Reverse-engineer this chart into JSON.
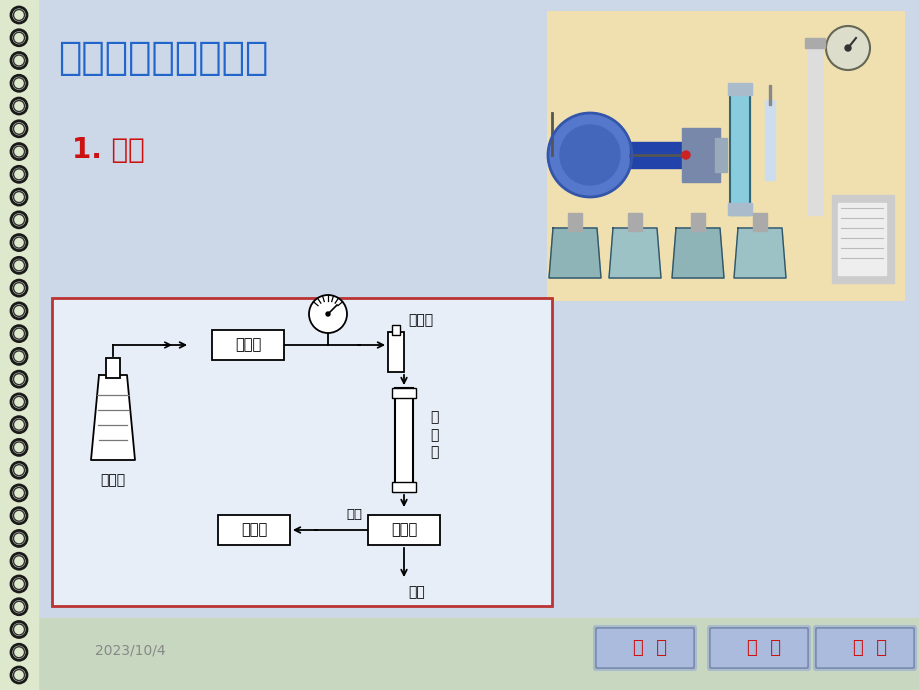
{
  "bg_color": "#c8d8c0",
  "main_bg": "#ccd8e8",
  "title": "二、流程及主要部件",
  "title_color": "#2266cc",
  "subtitle": "1. 流程",
  "subtitle_color": "#cc1111",
  "date_text": "2023/10/4",
  "date_color": "#888888",
  "nav_buttons": [
    "上  页",
    "下  页",
    "返  回"
  ],
  "nav_bg": "#7799bb",
  "nav_text_color": "#cc1111",
  "diagram_border_color": "#bb3333",
  "diagram_bg": "#e8eef8",
  "spiral_bg": "#dde8cc"
}
